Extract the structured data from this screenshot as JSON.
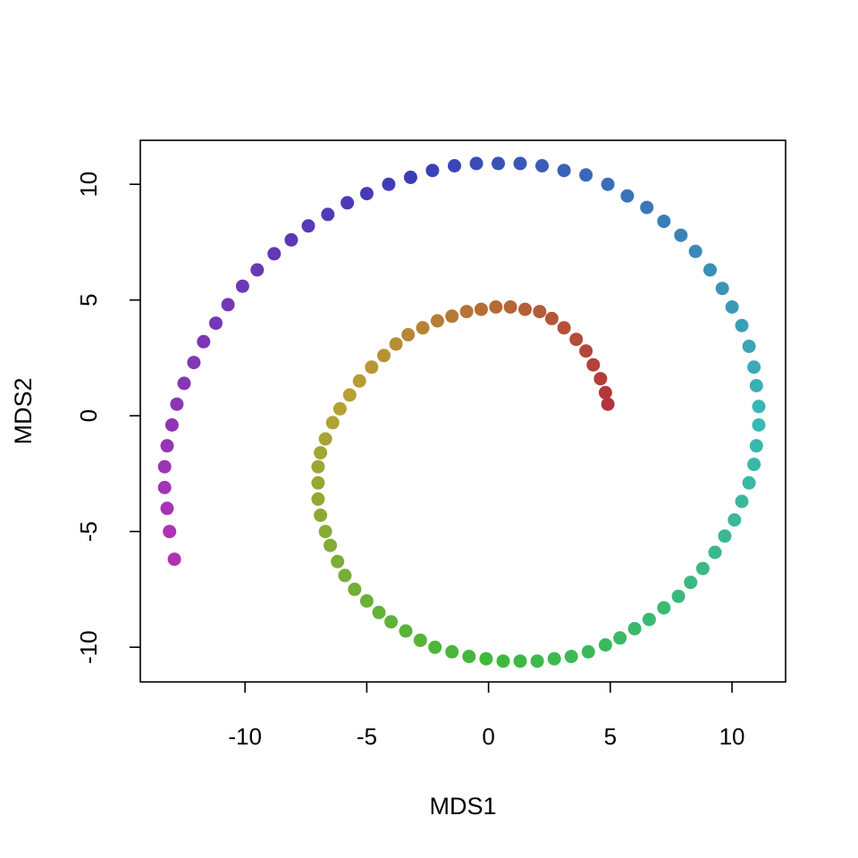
{
  "chart_data": {
    "type": "scatter",
    "title": "",
    "xlabel": "MDS1",
    "ylabel": "MDS2",
    "xlim": [
      -14.3,
      12.2
    ],
    "ylim": [
      -11.5,
      11.9
    ],
    "xticks": [
      -10,
      -5,
      0,
      5,
      10
    ],
    "xtick_labels": [
      "-10",
      "-5",
      "0",
      "5",
      "10"
    ],
    "yticks": [
      -10,
      -5,
      0,
      5,
      10
    ],
    "ytick_labels": [
      "-10",
      "-5",
      "0",
      "5",
      "10"
    ],
    "grid": false,
    "legend": "none",
    "color_gradient": [
      "#b2333a",
      "#b8a133",
      "#3cb93a",
      "#3ab8b6",
      "#3a3cb8",
      "#b133b2"
    ],
    "x": [
      4.9,
      4.8,
      4.6,
      4.3,
      4.0,
      3.6,
      3.1,
      2.6,
      2.1,
      1.5,
      0.9,
      0.3,
      -0.3,
      -0.9,
      -1.5,
      -2.1,
      -2.7,
      -3.3,
      -3.8,
      -4.3,
      -4.8,
      -5.3,
      -5.7,
      -6.1,
      -6.4,
      -6.7,
      -6.9,
      -7.0,
      -7.0,
      -7.0,
      -6.9,
      -6.7,
      -6.5,
      -6.2,
      -5.9,
      -5.5,
      -5.0,
      -4.5,
      -4.0,
      -3.4,
      -2.8,
      -2.2,
      -1.5,
      -0.8,
      -0.1,
      0.6,
      1.3,
      2.0,
      2.7,
      3.4,
      4.1,
      4.8,
      5.4,
      6.0,
      6.6,
      7.2,
      7.8,
      8.3,
      8.8,
      9.3,
      9.7,
      10.1,
      10.4,
      10.7,
      10.9,
      11.0,
      11.1,
      11.1,
      11.0,
      10.9,
      10.7,
      10.4,
      10.0,
      9.6,
      9.1,
      8.5,
      7.9,
      7.2,
      6.5,
      5.7,
      4.9,
      4.0,
      3.1,
      2.2,
      1.3,
      0.4,
      -0.5,
      -1.4,
      -2.3,
      -3.2,
      -4.1,
      -5.0,
      -5.8,
      -6.6,
      -7.4,
      -8.1,
      -8.8,
      -9.5,
      -10.1,
      -10.7,
      -11.2,
      -11.7,
      -12.1,
      -12.5,
      -12.8,
      -13.0,
      -13.2,
      -13.3,
      -13.3,
      -13.2,
      -13.1,
      -12.9
    ],
    "y": [
      0.5,
      1.0,
      1.6,
      2.2,
      2.8,
      3.3,
      3.8,
      4.2,
      4.5,
      4.6,
      4.7,
      4.7,
      4.6,
      4.5,
      4.3,
      4.1,
      3.8,
      3.5,
      3.1,
      2.6,
      2.1,
      1.5,
      0.9,
      0.3,
      -0.3,
      -1.0,
      -1.6,
      -2.2,
      -2.9,
      -3.6,
      -4.3,
      -5.0,
      -5.6,
      -6.3,
      -6.9,
      -7.5,
      -8.0,
      -8.5,
      -8.9,
      -9.3,
      -9.7,
      -10.0,
      -10.2,
      -10.4,
      -10.5,
      -10.6,
      -10.6,
      -10.6,
      -10.5,
      -10.4,
      -10.2,
      -9.9,
      -9.6,
      -9.2,
      -8.8,
      -8.3,
      -7.8,
      -7.2,
      -6.6,
      -5.9,
      -5.2,
      -4.5,
      -3.7,
      -2.9,
      -2.1,
      -1.3,
      -0.4,
      0.4,
      1.3,
      2.1,
      3.0,
      3.9,
      4.7,
      5.5,
      6.3,
      7.1,
      7.8,
      8.4,
      9.0,
      9.5,
      10.0,
      10.4,
      10.6,
      10.8,
      10.9,
      10.9,
      10.9,
      10.8,
      10.6,
      10.3,
      10.0,
      9.6,
      9.2,
      8.7,
      8.2,
      7.6,
      7.0,
      6.3,
      5.6,
      4.8,
      4.0,
      3.2,
      2.3,
      1.4,
      0.5,
      -0.4,
      -1.3,
      -2.2,
      -3.1,
      -4.0,
      -5.0,
      -6.2
    ]
  }
}
